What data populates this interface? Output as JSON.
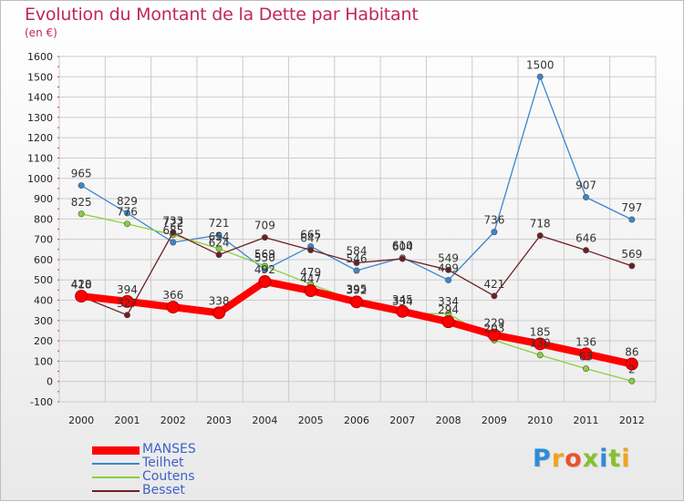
{
  "title": "Evolution du Montant de la Dette par Habitant",
  "subtitle": "(en €)",
  "logo_text": "Proxiti",
  "colors": {
    "title": "#c0265f",
    "legend_text": "#3d62c9",
    "axis_text": "#222222",
    "grid": "#cccccc",
    "tick": "#ff2a2a"
  },
  "chart_data": {
    "type": "line",
    "title": "Evolution du Montant de la Dette par Habitant",
    "subtitle": "(en €)",
    "xlabel": "",
    "ylabel": "",
    "ylim": [
      -100,
      1600
    ],
    "yticks": [
      -100,
      0,
      100,
      200,
      300,
      400,
      500,
      600,
      700,
      800,
      900,
      1000,
      1100,
      1200,
      1300,
      1400,
      1500,
      1600
    ],
    "grid": true,
    "legend_position": "bottom-left",
    "x": [
      "2000",
      "2001",
      "2002",
      "2003",
      "2004",
      "2005",
      "2006",
      "2007",
      "2008",
      "2009",
      "2010",
      "2011",
      "2012"
    ],
    "series": [
      {
        "name": "MANSES",
        "color": "#ff0000",
        "values": [
          420,
          394,
          366,
          338,
          492,
          447,
          392,
          345,
          294,
          229,
          185,
          136,
          86
        ]
      },
      {
        "name": "Teilhet",
        "color": "#3a86cf",
        "values": [
          965,
          829,
          685,
          721,
          550,
          665,
          546,
          610,
          499,
          736,
          1500,
          907,
          797
        ]
      },
      {
        "name": "Coutens",
        "color": "#88d13a",
        "values": [
          825,
          776,
          722,
          654,
          569,
          479,
          395,
          334,
          334,
          203,
          130,
          63,
          2
        ]
      },
      {
        "name": "Besset",
        "color": "#6e1e22",
        "values": [
          418,
          327,
          733,
          624,
          709,
          647,
          584,
          604,
          549,
          421,
          718,
          646,
          569
        ]
      }
    ],
    "value_labels": [
      {
        "x": "2000",
        "text": "965"
      },
      {
        "x": "2000",
        "text": "825"
      },
      {
        "x": "2000",
        "text": "420"
      },
      {
        "x": "2000",
        "text": "418"
      },
      {
        "x": "2001",
        "text": "829"
      },
      {
        "x": "2001",
        "text": "776"
      },
      {
        "x": "2001",
        "text": "394"
      },
      {
        "x": "2001",
        "text": "327"
      },
      {
        "x": "2002",
        "text": "733"
      },
      {
        "x": "2002",
        "text": "722"
      },
      {
        "x": "2002",
        "text": "685"
      },
      {
        "x": "2002",
        "text": "366"
      },
      {
        "x": "2003",
        "text": "721"
      },
      {
        "x": "2003",
        "text": "654"
      },
      {
        "x": "2003",
        "text": "624"
      },
      {
        "x": "2003",
        "text": "338"
      },
      {
        "x": "2004",
        "text": "709"
      },
      {
        "x": "2004",
        "text": "569"
      },
      {
        "x": "2004",
        "text": "550"
      },
      {
        "x": "2004",
        "text": "492"
      },
      {
        "x": "2005",
        "text": "665"
      },
      {
        "x": "2005",
        "text": "647"
      },
      {
        "x": "2005",
        "text": "479"
      },
      {
        "x": "2005",
        "text": "447"
      },
      {
        "x": "2006",
        "text": "584"
      },
      {
        "x": "2006",
        "text": "546"
      },
      {
        "x": "2006",
        "text": "395"
      },
      {
        "x": "2006",
        "text": "392"
      },
      {
        "x": "2007",
        "text": "610"
      },
      {
        "x": "2007",
        "text": "604"
      },
      {
        "x": "2007",
        "text": "345"
      },
      {
        "x": "2007",
        "text": "334"
      },
      {
        "x": "2008",
        "text": "549"
      },
      {
        "x": "2008",
        "text": "499"
      },
      {
        "x": "2008",
        "text": "334"
      },
      {
        "x": "2008",
        "text": "294"
      },
      {
        "x": "2009",
        "text": "736"
      },
      {
        "x": "2009",
        "text": "421"
      },
      {
        "x": "2009",
        "text": "229"
      },
      {
        "x": "2009",
        "text": "203"
      },
      {
        "x": "2010",
        "text": "1500"
      },
      {
        "x": "2010",
        "text": "718"
      },
      {
        "x": "2010",
        "text": "185"
      },
      {
        "x": "2010",
        "text": "130"
      },
      {
        "x": "2011",
        "text": "907"
      },
      {
        "x": "2011",
        "text": "646"
      },
      {
        "x": "2011",
        "text": "136"
      },
      {
        "x": "2011",
        "text": "63"
      },
      {
        "x": "2012",
        "text": "797"
      },
      {
        "x": "2012",
        "text": "569"
      },
      {
        "x": "2012",
        "text": "86"
      },
      {
        "x": "2012",
        "text": "2"
      }
    ]
  }
}
